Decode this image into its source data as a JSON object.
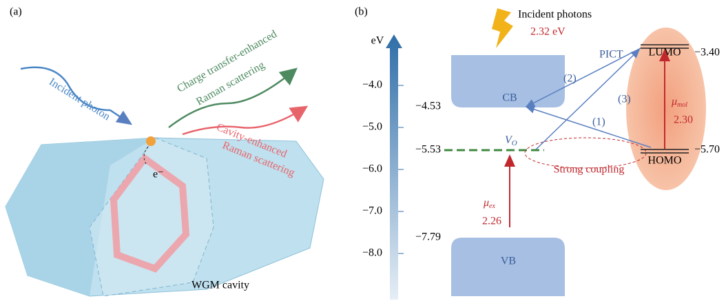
{
  "panel_a": {
    "label": "(a)",
    "incident": "Incident photon",
    "ct_line1": "Charge transfer-enhanced",
    "ct_line2": "Raman scattering",
    "cav_line1": "Cavity-enhanced",
    "cav_line2": "Raman scattering",
    "electron": "e⁻",
    "cavity": "WGM cavity"
  },
  "panel_b": {
    "label": "(b)",
    "axis_unit": "eV",
    "axis_ticks": [
      "−4.0",
      "−5.0",
      "−6.0",
      "−7.0",
      "−8.0"
    ],
    "photons": "Incident photons",
    "photon_energy": "2.32 eV",
    "cb": "CB",
    "vb": "VB",
    "cb_level": "−4.53",
    "vo_level": "−5.53",
    "vb_level": "−7.79",
    "vo": "V",
    "vo_sub": "O",
    "mu_ex": "μ",
    "mu_ex_sub": "ex",
    "mu_ex_value": "2.26",
    "pict": "PICT",
    "step2": "(2)",
    "step3": "(3)",
    "step1": "(1)",
    "lumo": "LUMO",
    "lumo_level": "−3.40",
    "homo": "HOMO",
    "homo_level": "−5.70",
    "mu_mol": "μ",
    "mu_mol_sub": "mol",
    "mu_mol_value": "2.30",
    "coupling": "Strong coupling"
  }
}
